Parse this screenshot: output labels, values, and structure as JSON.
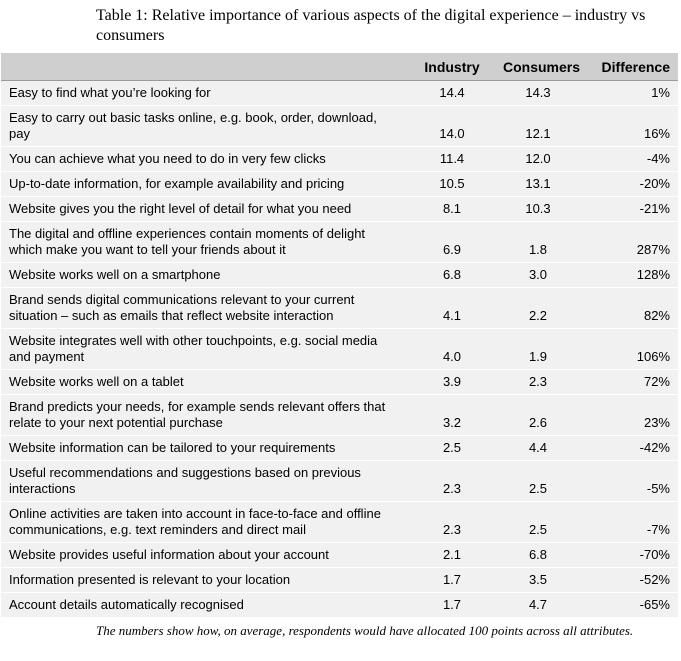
{
  "title": "Table 1: Relative importance of various aspects of the digital experience – industry vs consumers",
  "columns": [
    "",
    "Industry",
    "Consumers",
    "Difference"
  ],
  "rows": [
    {
      "attribute": "Easy to find what you’re looking for",
      "industry": "14.4",
      "consumers": "14.3",
      "difference": "1%"
    },
    {
      "attribute": "Easy to carry out basic tasks online, e.g. book, order, download, pay",
      "industry": "14.0",
      "consumers": "12.1",
      "difference": "16%"
    },
    {
      "attribute": "You can achieve what you need to do in very few clicks",
      "industry": "11.4",
      "consumers": "12.0",
      "difference": "-4%"
    },
    {
      "attribute": "Up-to-date information, for example availability and pricing",
      "industry": "10.5",
      "consumers": "13.1",
      "difference": "-20%"
    },
    {
      "attribute": "Website gives you the right level of detail for what you need",
      "industry": "8.1",
      "consumers": "10.3",
      "difference": "-21%"
    },
    {
      "attribute": "The digital and offline experiences contain moments of delight which make you want to tell your friends about it",
      "industry": "6.9",
      "consumers": "1.8",
      "difference": "287%"
    },
    {
      "attribute": "Website works well on a smartphone",
      "industry": "6.8",
      "consumers": "3.0",
      "difference": "128%"
    },
    {
      "attribute": "Brand sends digital communications relevant to your current situation – such as emails that reflect website interaction",
      "industry": "4.1",
      "consumers": "2.2",
      "difference": "82%"
    },
    {
      "attribute": "Website integrates well with other touchpoints, e.g. social media and payment",
      "industry": "4.0",
      "consumers": "1.9",
      "difference": "106%"
    },
    {
      "attribute": "Website works well on a tablet",
      "industry": "3.9",
      "consumers": "2.3",
      "difference": "72%"
    },
    {
      "attribute": "Brand predicts your needs, for example sends relevant offers that relate to your next potential purchase",
      "industry": "3.2",
      "consumers": "2.6",
      "difference": "23%"
    },
    {
      "attribute": "Website information can be tailored to your requirements",
      "industry": "2.5",
      "consumers": "4.4",
      "difference": "-42%"
    },
    {
      "attribute": "Useful recommendations and suggestions based on previous interactions",
      "industry": "2.3",
      "consumers": "2.5",
      "difference": "-5%"
    },
    {
      "attribute": "Online activities are taken into account in face-to-face and offline communications, e.g. text reminders and direct mail",
      "industry": "2.3",
      "consumers": "2.5",
      "difference": "-7%"
    },
    {
      "attribute": "Website provides useful information about your account",
      "industry": "2.1",
      "consumers": "6.8",
      "difference": "-70%"
    },
    {
      "attribute": "Information presented is relevant to your location",
      "industry": "1.7",
      "consumers": "3.5",
      "difference": "-52%"
    },
    {
      "attribute": "Account details automatically recognised",
      "industry": "1.7",
      "consumers": "4.7",
      "difference": "-65%"
    }
  ],
  "note": "The numbers show how, on average, respondents would have allocated 100 points across all attributes."
}
